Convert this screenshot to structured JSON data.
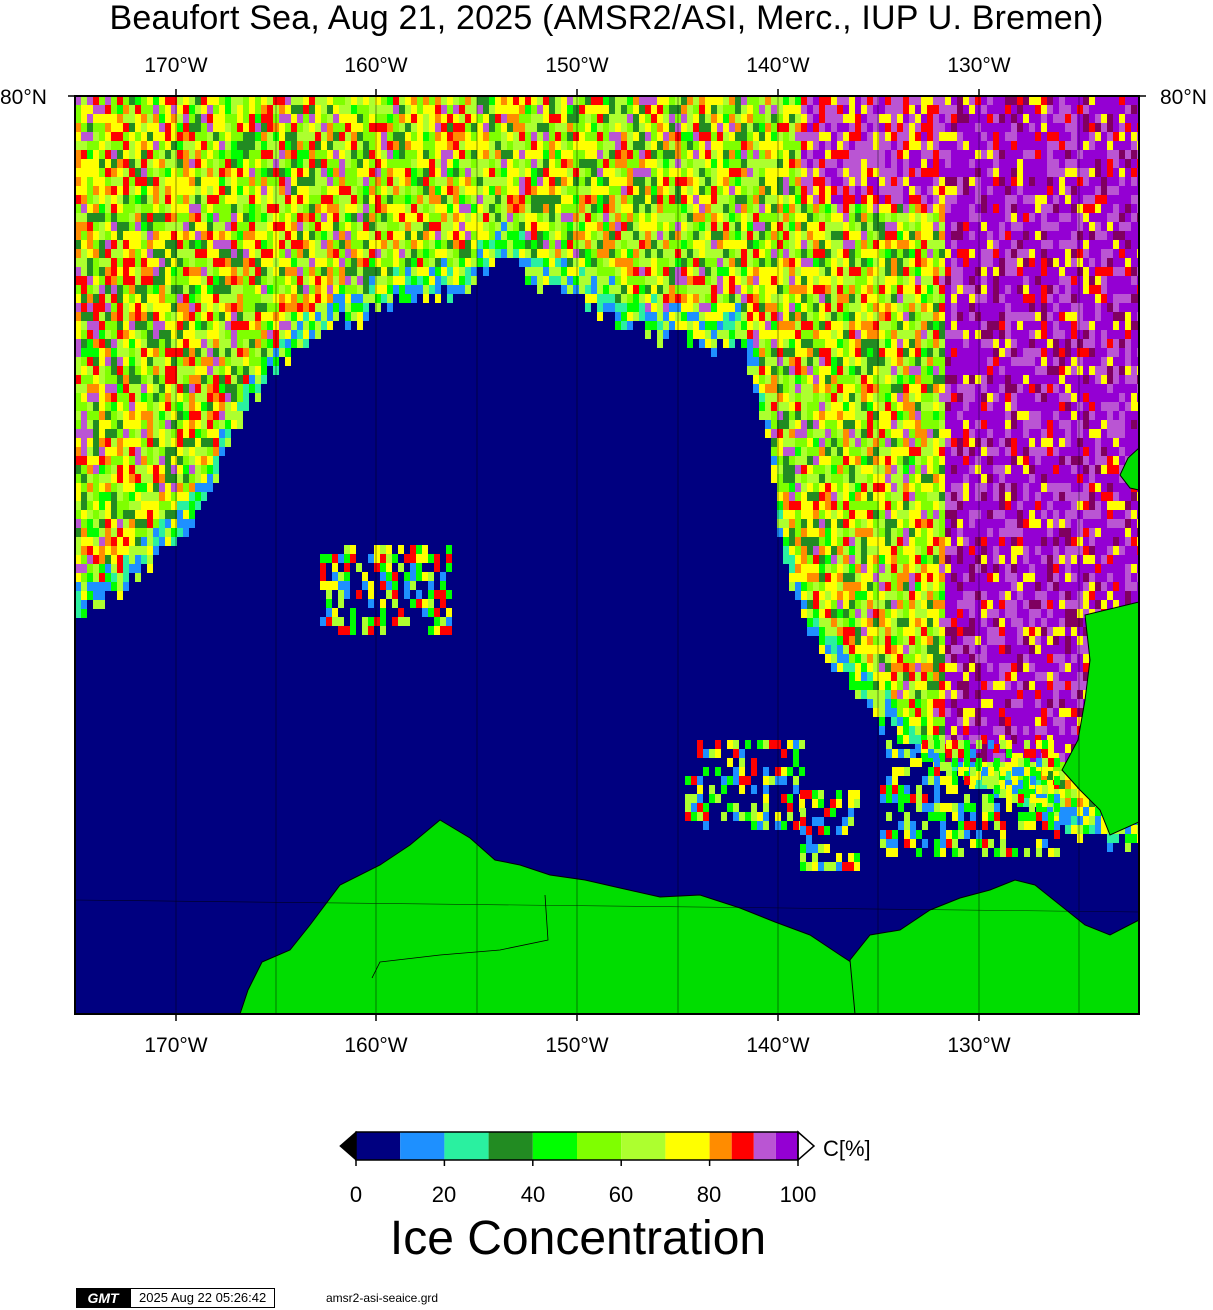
{
  "title": "Beaufort Sea, Aug 21, 2025 (AMSR2/ASI, Merc., IUP U. Bremen)",
  "map": {
    "lon_range": [
      -175,
      -122
    ],
    "lon_ticks": [
      "170°W",
      "160°W",
      "150°W",
      "140°W",
      "130°W"
    ],
    "lat_label_left": "80°N",
    "lat_label_right": "80°N",
    "colors": {
      "ocean": "#000080",
      "land": "#00dd00",
      "frame": "#000000"
    },
    "regions": {
      "pack_ice_north": "high concentration along northern edge",
      "open_water_center": "open water Beaufort Sea interior",
      "canadian_archipelago": "dense ice east"
    }
  },
  "colorbar": {
    "unit": "C[%]",
    "tick_labels": [
      "0",
      "20",
      "40",
      "60",
      "80",
      "100"
    ],
    "min": 0,
    "max": 100,
    "bins": [
      {
        "from": 0,
        "to": 10,
        "color": "#000080"
      },
      {
        "from": 10,
        "to": 20,
        "color": "#1e90ff"
      },
      {
        "from": 20,
        "to": 30,
        "color": "#2af0a0"
      },
      {
        "from": 30,
        "to": 40,
        "color": "#228b22"
      },
      {
        "from": 40,
        "to": 50,
        "color": "#00ff00"
      },
      {
        "from": 50,
        "to": 60,
        "color": "#7fff00"
      },
      {
        "from": 60,
        "to": 70,
        "color": "#adff2f"
      },
      {
        "from": 70,
        "to": 80,
        "color": "#ffff00"
      },
      {
        "from": 80,
        "to": 85,
        "color": "#ff8c00"
      },
      {
        "from": 85,
        "to": 90,
        "color": "#ff0000"
      },
      {
        "from": 90,
        "to": 95,
        "color": "#ba55d3"
      },
      {
        "from": 95,
        "to": 100,
        "color": "#9400d3"
      }
    ],
    "title": "Ice Concentration"
  },
  "footer": {
    "logo": "GMT",
    "timestamp": "2025 Aug 22 05:26:42",
    "filename": "amsr2-asi-seaice.grd"
  }
}
